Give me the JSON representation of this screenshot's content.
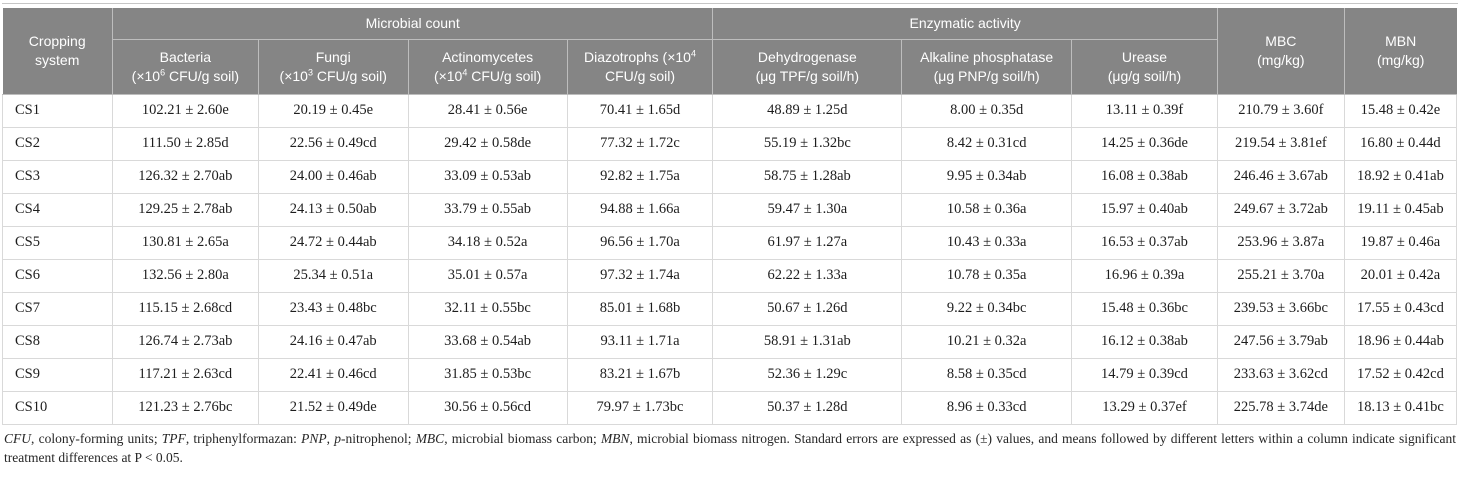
{
  "colors": {
    "header_bg": "#858585",
    "header_divider": "#bdbdbd",
    "header_text": "#ffffff",
    "body_border": "#d9d9d9",
    "body_text": "#1d1d1d",
    "footnote_text": "#262626"
  },
  "table": {
    "corner_header": "Cropping system",
    "groups": [
      {
        "label": "Microbial count",
        "span": 4
      },
      {
        "label": "Enzymatic activity",
        "span": 3
      }
    ],
    "columns": [
      {
        "key": "bacteria",
        "name_pre": "Bacteria",
        "name_sup": "",
        "unit_pre": "(×10",
        "unit_sup": "6",
        "unit_post": " CFU/g soil)"
      },
      {
        "key": "fungi",
        "name_pre": "Fungi",
        "name_sup": "",
        "unit_pre": "(×10",
        "unit_sup": "3",
        "unit_post": " CFU/g soil)"
      },
      {
        "key": "actinomycetes",
        "name_pre": "Actinomycetes",
        "name_sup": "",
        "unit_pre": "(×10",
        "unit_sup": "4",
        "unit_post": " CFU/g soil)"
      },
      {
        "key": "diazotrophs",
        "name_pre": "Diazotrophs (×10",
        "name_sup": "4",
        "unit_pre": "CFU/g soil)",
        "unit_sup": "",
        "unit_post": ""
      },
      {
        "key": "dehydrogenase",
        "name_pre": "Dehydrogenase",
        "name_sup": "",
        "unit_pre": "(μg TPF/g soil/h)",
        "unit_sup": "",
        "unit_post": ""
      },
      {
        "key": "alkaline_phosphatase",
        "name_pre": "Alkaline phosphatase",
        "name_sup": "",
        "unit_pre": "(μg PNP/g soil/h)",
        "unit_sup": "",
        "unit_post": ""
      },
      {
        "key": "urease",
        "name_pre": "Urease",
        "name_sup": "",
        "unit_pre": "(μg/g soil/h)",
        "unit_sup": "",
        "unit_post": ""
      }
    ],
    "side_columns": [
      {
        "key": "mbc",
        "name": "MBC",
        "unit": "(mg/kg)"
      },
      {
        "key": "mbn",
        "name": "MBN",
        "unit": "(mg/kg)"
      }
    ],
    "value_keys": [
      "bacteria",
      "fungi",
      "actinomycetes",
      "diazotrophs",
      "dehydrogenase",
      "alkaline_phosphatase",
      "urease",
      "mbc",
      "mbn"
    ],
    "rows": [
      {
        "id": "CS1",
        "values": [
          "102.21 ± 2.60e",
          "20.19 ± 0.45e",
          "28.41 ± 0.56e",
          "70.41 ± 1.65d",
          "48.89 ± 1.25d",
          "8.00 ± 0.35d",
          "13.11 ± 0.39f",
          "210.79 ± 3.60f",
          "15.48 ± 0.42e"
        ]
      },
      {
        "id": "CS2",
        "values": [
          "111.50 ± 2.85d",
          "22.56 ± 0.49cd",
          "29.42 ± 0.58de",
          "77.32 ± 1.72c",
          "55.19 ± 1.32bc",
          "8.42 ± 0.31cd",
          "14.25 ± 0.36de",
          "219.54 ± 3.81ef",
          "16.80 ± 0.44d"
        ]
      },
      {
        "id": "CS3",
        "values": [
          "126.32 ± 2.70ab",
          "24.00 ± 0.46ab",
          "33.09 ± 0.53ab",
          "92.82 ± 1.75a",
          "58.75 ± 1.28ab",
          "9.95 ± 0.34ab",
          "16.08 ± 0.38ab",
          "246.46 ± 3.67ab",
          "18.92 ± 0.41ab"
        ]
      },
      {
        "id": "CS4",
        "values": [
          "129.25 ± 2.78ab",
          "24.13 ± 0.50ab",
          "33.79 ± 0.55ab",
          "94.88 ± 1.66a",
          "59.47 ± 1.30a",
          "10.58 ± 0.36a",
          "15.97 ± 0.40ab",
          "249.67 ± 3.72ab",
          "19.11 ± 0.45ab"
        ]
      },
      {
        "id": "CS5",
        "values": [
          "130.81 ± 2.65a",
          "24.72 ± 0.44ab",
          "34.18 ± 0.52a",
          "96.56 ± 1.70a",
          "61.97 ± 1.27a",
          "10.43 ± 0.33a",
          "16.53 ± 0.37ab",
          "253.96 ± 3.87a",
          "19.87 ± 0.46a"
        ]
      },
      {
        "id": "CS6",
        "values": [
          "132.56 ± 2.80a",
          "25.34 ± 0.51a",
          "35.01 ± 0.57a",
          "97.32 ± 1.74a",
          "62.22 ± 1.33a",
          "10.78 ± 0.35a",
          "16.96 ± 0.39a",
          "255.21 ± 3.70a",
          "20.01 ± 0.42a"
        ]
      },
      {
        "id": "CS7",
        "values": [
          "115.15 ± 2.68cd",
          "23.43 ± 0.48bc",
          "32.11 ± 0.55bc",
          "85.01 ± 1.68b",
          "50.67 ± 1.26d",
          "9.22 ± 0.34bc",
          "15.48 ± 0.36bc",
          "239.53 ± 3.66bc",
          "17.55 ± 0.43cd"
        ]
      },
      {
        "id": "CS8",
        "values": [
          "126.74 ± 2.73ab",
          "24.16 ± 0.47ab",
          "33.68 ± 0.54ab",
          "93.11 ± 1.71a",
          "58.91 ± 1.31ab",
          "10.21 ± 0.32a",
          "16.12 ± 0.38ab",
          "247.56 ± 3.79ab",
          "18.96 ± 0.44ab"
        ]
      },
      {
        "id": "CS9",
        "values": [
          "117.21 ± 2.63cd",
          "22.41 ± 0.46cd",
          "31.85 ± 0.53bc",
          "83.21 ± 1.67b",
          "52.36 ± 1.29c",
          "8.58 ± 0.35cd",
          "14.79 ± 0.39cd",
          "233.63 ± 3.62cd",
          "17.52 ± 0.42cd"
        ]
      },
      {
        "id": "CS10",
        "values": [
          "121.23 ± 2.76bc",
          "21.52 ± 0.49de",
          "30.56 ± 0.56cd",
          "79.97 ± 1.73bc",
          "50.37 ± 1.28d",
          "8.96 ± 0.33cd",
          "13.29 ± 0.37ef",
          "225.78 ± 3.74de",
          "18.13 ± 0.41bc"
        ]
      }
    ]
  },
  "footnote": {
    "segments": [
      "CFU",
      ", colony-forming units; ",
      "TPF",
      ", triphenylformazan: ",
      "PNP",
      ", ",
      "p",
      "-nitrophenol; ",
      "MBC",
      ", microbial biomass carbon; ",
      "MBN",
      ", microbial biomass nitrogen. Standard errors are expressed as (±) values, and means followed by different letters within a column indicate significant treatment differences at P < 0.05."
    ]
  }
}
